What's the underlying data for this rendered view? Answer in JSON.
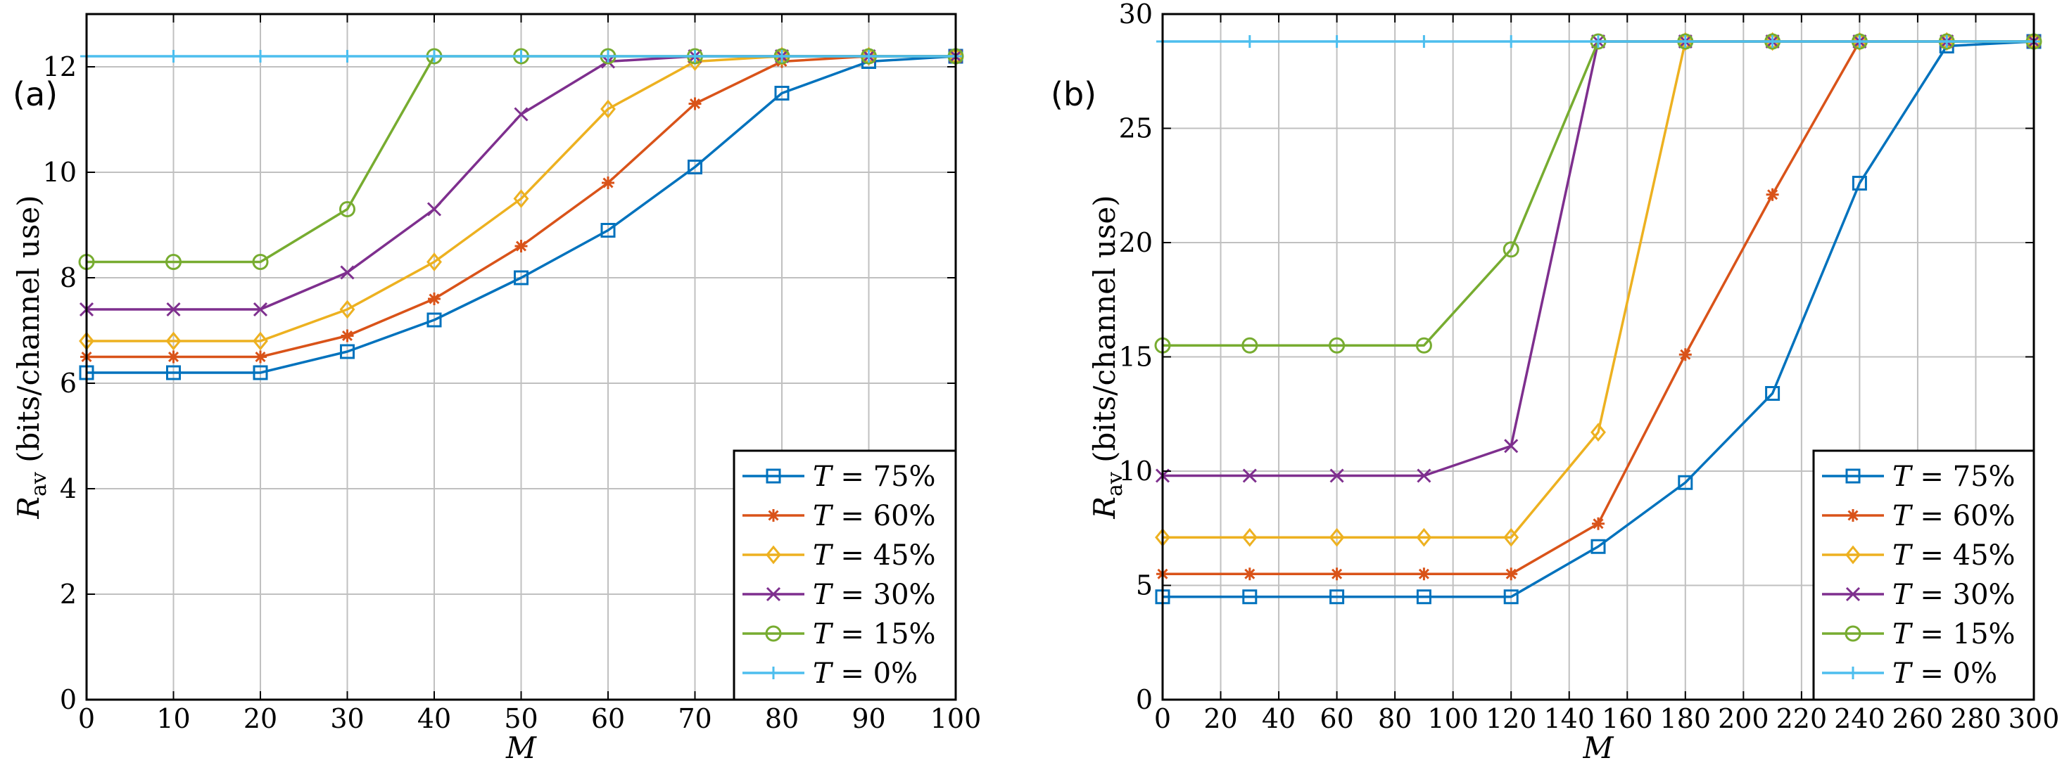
{
  "chart_data": [
    {
      "type": "line",
      "panel_label": "(a)",
      "xlabel": "M",
      "ylabel": "R",
      "ylabel_sub": "av",
      "ylabel_suffix": " (bits/channel use)",
      "xlim": [
        0,
        100
      ],
      "ylim": [
        0,
        13
      ],
      "xticks": [
        0,
        10,
        20,
        30,
        40,
        50,
        60,
        70,
        80,
        90,
        100
      ],
      "yticks": [
        0,
        2,
        4,
        6,
        8,
        10,
        12
      ],
      "grid": true,
      "legend_position": "bottom-right",
      "x": [
        0,
        10,
        20,
        30,
        40,
        50,
        60,
        70,
        80,
        90,
        100
      ],
      "series": [
        {
          "name": "T = 75%",
          "legend_var": "T",
          "legend_rest": " = 75%",
          "color": "#0072BD",
          "marker": "square",
          "values": [
            6.2,
            6.2,
            6.2,
            6.6,
            7.2,
            8.0,
            8.9,
            10.1,
            11.5,
            12.1,
            12.2
          ]
        },
        {
          "name": "T = 60%",
          "legend_var": "T",
          "legend_rest": " = 60%",
          "color": "#D95319",
          "marker": "asterisk",
          "values": [
            6.5,
            6.5,
            6.5,
            6.9,
            7.6,
            8.6,
            9.8,
            11.3,
            12.1,
            12.2,
            12.2
          ]
        },
        {
          "name": "T = 45%",
          "legend_var": "T",
          "legend_rest": " = 45%",
          "color": "#EDB120",
          "marker": "diamond",
          "values": [
            6.8,
            6.8,
            6.8,
            7.4,
            8.3,
            9.5,
            11.2,
            12.1,
            12.2,
            12.2,
            12.2
          ]
        },
        {
          "name": "T = 30%",
          "legend_var": "T",
          "legend_rest": " = 30%",
          "color": "#7E2F8E",
          "marker": "x",
          "values": [
            7.4,
            7.4,
            7.4,
            8.1,
            9.3,
            11.1,
            12.1,
            12.2,
            12.2,
            12.2,
            12.2
          ]
        },
        {
          "name": "T = 15%",
          "legend_var": "T",
          "legend_rest": " = 15%",
          "color": "#77AC30",
          "marker": "circle",
          "values": [
            8.3,
            8.3,
            8.3,
            9.3,
            12.2,
            12.2,
            12.2,
            12.2,
            12.2,
            12.2,
            12.2
          ]
        },
        {
          "name": "T = 0%",
          "legend_var": "T",
          "legend_rest": " = 0%",
          "color": "#4DBEEE",
          "marker": "plus",
          "values": [
            12.2,
            12.2,
            12.2,
            12.2,
            12.2,
            12.2,
            12.2,
            12.2,
            12.2,
            12.2,
            12.2
          ]
        }
      ]
    },
    {
      "type": "line",
      "panel_label": "(b)",
      "xlabel": "M",
      "ylabel": "R",
      "ylabel_sub": "av",
      "ylabel_suffix": " (bits/channel use)",
      "xlim": [
        0,
        300
      ],
      "ylim": [
        0,
        30
      ],
      "xticks": [
        0,
        20,
        40,
        60,
        80,
        100,
        120,
        140,
        160,
        180,
        200,
        220,
        240,
        260,
        280,
        300
      ],
      "yticks": [
        0,
        5,
        10,
        15,
        20,
        25,
        30
      ],
      "grid": true,
      "legend_position": "bottom-right",
      "x": [
        0,
        30,
        60,
        90,
        120,
        150,
        180,
        210,
        240,
        270,
        300
      ],
      "series": [
        {
          "name": "T = 75%",
          "legend_var": "T",
          "legend_rest": " = 75%",
          "color": "#0072BD",
          "marker": "square",
          "values": [
            4.5,
            4.5,
            4.5,
            4.5,
            4.5,
            6.7,
            9.5,
            13.4,
            22.6,
            28.6,
            28.8
          ]
        },
        {
          "name": "T = 60%",
          "legend_var": "T",
          "legend_rest": " = 60%",
          "color": "#D95319",
          "marker": "asterisk",
          "values": [
            5.5,
            5.5,
            5.5,
            5.5,
            5.5,
            7.7,
            15.1,
            22.1,
            28.8,
            28.8,
            28.8
          ]
        },
        {
          "name": "T = 45%",
          "legend_var": "T",
          "legend_rest": " = 45%",
          "color": "#EDB120",
          "marker": "diamond",
          "values": [
            7.1,
            7.1,
            7.1,
            7.1,
            7.1,
            11.7,
            28.8,
            28.8,
            28.8,
            28.8,
            28.8
          ]
        },
        {
          "name": "T = 30%",
          "legend_var": "T",
          "legend_rest": " = 30%",
          "color": "#7E2F8E",
          "marker": "x",
          "values": [
            9.8,
            9.8,
            9.8,
            9.8,
            11.1,
            28.8,
            28.8,
            28.8,
            28.8,
            28.8,
            28.8
          ]
        },
        {
          "name": "T = 15%",
          "legend_var": "T",
          "legend_rest": " = 15%",
          "color": "#77AC30",
          "marker": "circle",
          "values": [
            15.5,
            15.5,
            15.5,
            15.5,
            19.7,
            28.8,
            28.8,
            28.8,
            28.8,
            28.8,
            28.8
          ]
        },
        {
          "name": "T = 0%",
          "legend_var": "T",
          "legend_rest": " = 0%",
          "color": "#4DBEEE",
          "marker": "plus",
          "values": [
            28.8,
            28.8,
            28.8,
            28.8,
            28.8,
            28.8,
            28.8,
            28.8,
            28.8,
            28.8,
            28.8
          ]
        }
      ]
    }
  ]
}
